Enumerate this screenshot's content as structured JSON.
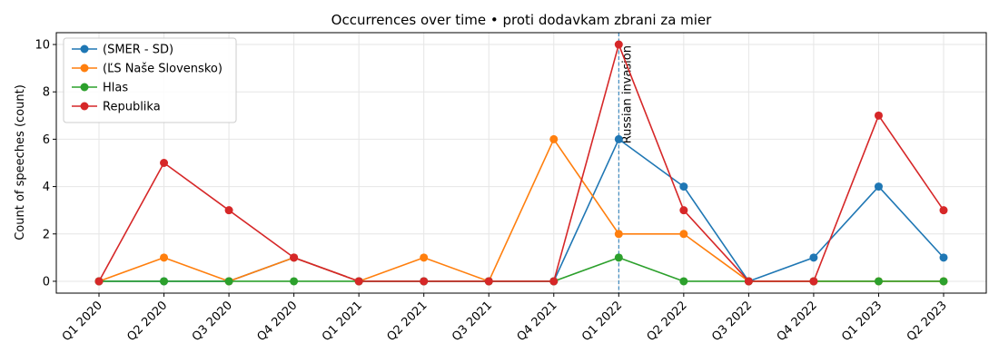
{
  "chart_data": {
    "type": "line",
    "title": "Occurrences over time • proti dodavkam zbrani za mier",
    "xlabel": "",
    "ylabel": "Count of speeches (count)",
    "categories": [
      "Q1 2020",
      "Q2 2020",
      "Q3 2020",
      "Q4 2020",
      "Q1 2021",
      "Q2 2021",
      "Q3 2021",
      "Q4 2021",
      "Q1 2022",
      "Q2 2022",
      "Q3 2022",
      "Q4 2022",
      "Q1 2023",
      "Q2 2023"
    ],
    "ylim": [
      -0.5,
      10.5
    ],
    "yticks": [
      0,
      2,
      4,
      6,
      8,
      10
    ],
    "grid": true,
    "legend_position": "top-left",
    "series": [
      {
        "name": "(SMER - SD)",
        "color": "#1f77b4",
        "values": [
          0,
          0,
          0,
          1,
          0,
          0,
          0,
          0,
          6,
          4,
          0,
          1,
          4,
          1
        ]
      },
      {
        "name": "(ĽS Naše Slovensko)",
        "color": "#ff7f0e",
        "values": [
          0,
          1,
          0,
          1,
          0,
          1,
          0,
          6,
          2,
          2,
          0,
          0,
          0,
          0
        ]
      },
      {
        "name": "Hlas",
        "color": "#2ca02c",
        "values": [
          0,
          0,
          0,
          0,
          0,
          0,
          0,
          0,
          1,
          0,
          0,
          0,
          0,
          0
        ]
      },
      {
        "name": "Republika",
        "color": "#d62728",
        "values": [
          0,
          5,
          3,
          1,
          0,
          0,
          0,
          0,
          10,
          3,
          0,
          0,
          7,
          3
        ]
      }
    ],
    "annotations": [
      {
        "text": "Russian invasion",
        "x": "Q1 2022",
        "style": "dashed-vertical-line",
        "color": "#1f77b4"
      }
    ]
  }
}
